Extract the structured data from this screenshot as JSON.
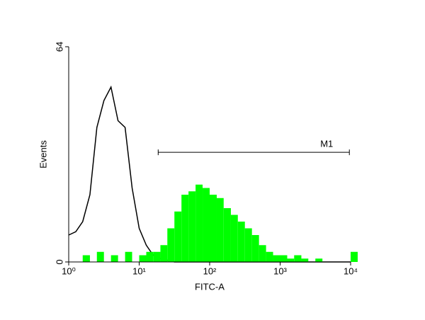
{
  "chart_data": {
    "type": "histogram",
    "x_label": "FITC-A",
    "y_label": "Events",
    "log_x": true,
    "xlim": [
      1,
      10000
    ],
    "xticks": [
      {
        "value": 1,
        "label": "10⁰"
      },
      {
        "value": 10,
        "label": "10¹"
      },
      {
        "value": 100,
        "label": "10²"
      },
      {
        "value": 1000,
        "label": "10³"
      },
      {
        "value": 10000,
        "label": "10⁴"
      }
    ],
    "ylim": [
      0,
      64
    ],
    "yticks": [
      0,
      64
    ],
    "x": [
      1,
      1.26,
      1.58,
      2,
      2.51,
      3.16,
      3.98,
      5.01,
      6.31,
      7.94,
      10,
      12.6,
      15.8,
      20,
      25.1,
      31.6,
      39.8,
      50.1,
      63.1,
      79.4,
      100,
      126,
      158,
      200,
      251,
      316,
      398,
      501,
      631,
      794,
      1000,
      1260,
      1580,
      2000,
      2510,
      3160,
      3980,
      5010,
      6310,
      7940,
      10000
    ],
    "series": [
      {
        "color": "#000000",
        "style": "line",
        "values": [
          8,
          9,
          12,
          20,
          40,
          48,
          52,
          42,
          40,
          22,
          10,
          5,
          2,
          1,
          0.5,
          0,
          0,
          0,
          0,
          0,
          0,
          0,
          0,
          0,
          0,
          0,
          0,
          0,
          0,
          0,
          0,
          0,
          0,
          0,
          0,
          0,
          0,
          0,
          0,
          0,
          0
        ]
      },
      {
        "color": "#00ff00",
        "style": "filled",
        "values": [
          0,
          0,
          2,
          0,
          3,
          0,
          2,
          0,
          3,
          0,
          2,
          3,
          3,
          5,
          10,
          15,
          20,
          21,
          23,
          22,
          20,
          19,
          16,
          14,
          12,
          10,
          8,
          5,
          3,
          2,
          2,
          1,
          2,
          1,
          0,
          1,
          0,
          0,
          0,
          0,
          3
        ]
      }
    ],
    "marker": {
      "label": "M1",
      "start": 18.6,
      "end": 9600,
      "level": 32.6
    }
  }
}
